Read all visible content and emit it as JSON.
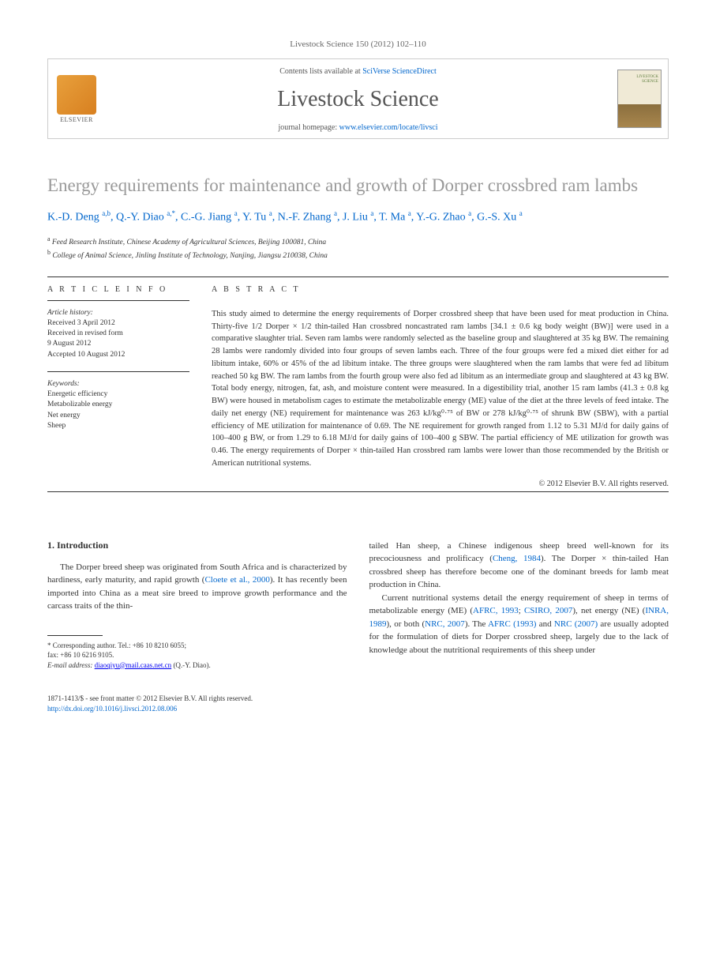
{
  "journal_ref": "Livestock Science 150 (2012) 102–110",
  "header": {
    "elsevier": "ELSEVIER",
    "contents_prefix": "Contents lists available at ",
    "contents_link": "SciVerse ScienceDirect",
    "journal_name": "Livestock Science",
    "homepage_prefix": "journal homepage: ",
    "homepage_link": "www.elsevier.com/locate/livsci"
  },
  "title": "Energy requirements for maintenance and growth of Dorper crossbred ram lambs",
  "authors_html": "K.-D. Deng <sup>a,b</sup>, Q.-Y. Diao <sup>a,*</sup>, C.-G. Jiang <sup>a</sup>, Y. Tu <sup>a</sup>, N.-F. Zhang <sup>a</sup>, J. Liu <sup>a</sup>, T. Ma <sup>a</sup>, Y.-G. Zhao <sup>a</sup>, G.-S. Xu <sup>a</sup>",
  "affiliations": {
    "a": "Feed Research Institute, Chinese Academy of Agricultural Sciences, Beijing 100081, China",
    "b": "College of Animal Science, Jinling Institute of Technology, Nanjing, Jiangsu 210038, China"
  },
  "info": {
    "heading": "A R T I C L E   I N F O",
    "history_label": "Article history:",
    "received": "Received 3 April 2012",
    "revised1": "Received in revised form",
    "revised2": "9 August 2012",
    "accepted": "Accepted 10 August 2012",
    "keywords_label": "Keywords:",
    "kw1": "Energetic efficiency",
    "kw2": "Metabolizable energy",
    "kw3": "Net energy",
    "kw4": "Sheep"
  },
  "abstract": {
    "heading": "A B S T R A C T",
    "text": "This study aimed to determine the energy requirements of Dorper crossbred sheep that have been used for meat production in China. Thirty-five 1/2 Dorper × 1/2 thin-tailed Han crossbred noncastrated ram lambs [34.1 ± 0.6 kg body weight (BW)] were used in a comparative slaughter trial. Seven ram lambs were randomly selected as the baseline group and slaughtered at 35 kg BW. The remaining 28 lambs were randomly divided into four groups of seven lambs each. Three of the four groups were fed a mixed diet either for ad libitum intake, 60% or 45% of the ad libitum intake. The three groups were slaughtered when the ram lambs that were fed ad libitum reached 50 kg BW. The ram lambs from the fourth group were also fed ad libitum as an intermediate group and slaughtered at 43 kg BW. Total body energy, nitrogen, fat, ash, and moisture content were measured. In a digestibility trial, another 15 ram lambs (41.3 ± 0.8 kg BW) were housed in metabolism cages to estimate the metabolizable energy (ME) value of the diet at the three levels of feed intake. The daily net energy (NE) requirement for maintenance was 263 kJ/kg⁰·⁷⁵ of BW or 278 kJ/kg⁰·⁷⁵ of shrunk BW (SBW), with a partial efficiency of ME utilization for maintenance of 0.69. The NE requirement for growth ranged from 1.12 to 5.31 MJ/d for daily gains of 100–400 g BW, or from 1.29 to 6.18 MJ/d for daily gains of 100–400 g SBW. The partial efficiency of ME utilization for growth was 0.46. The energy requirements of Dorper × thin-tailed Han crossbred ram lambs were lower than those recommended by the British or American nutritional systems.",
    "copyright": "© 2012 Elsevier B.V. All rights reserved."
  },
  "intro": {
    "heading": "1.  Introduction",
    "p1_pre": "The Dorper breed sheep was originated from South Africa and is characterized by hardiness, early maturity, and rapid growth (",
    "p1_link": "Cloete et al., 2000",
    "p1_post": "). It has recently been imported into China as a meat sire breed to improve growth performance and the carcass traits of the thin-",
    "p2_pre": "tailed Han sheep, a Chinese indigenous sheep breed well-known for its precociousness and prolificacy (",
    "p2_link": "Cheng, 1984",
    "p2_post": "). The Dorper × thin-tailed Han crossbred sheep has therefore become one of the dominant breeds for lamb meat production in China.",
    "p3_a": "Current nutritional systems detail the energy requirement of sheep in terms of metabolizable energy (ME) (",
    "p3_l1": "AFRC, 1993",
    "p3_b": "; ",
    "p3_l2": "CSIRO, 2007",
    "p3_c": "), net energy (NE) (",
    "p3_l3": "INRA, 1989",
    "p3_d": "), or both (",
    "p3_l4": "NRC, 2007",
    "p3_e": "). The ",
    "p3_l5": "AFRC (1993)",
    "p3_f": " and ",
    "p3_l6": "NRC (2007)",
    "p3_g": " are usually adopted for the formulation of diets for Dorper crossbred sheep, largely due to the lack of knowledge about the nutritional requirements of this sheep under"
  },
  "corr": {
    "label": "* Corresponding author. Tel.: ",
    "tel": "+86 10 8210 6055;",
    "fax_label": "fax: ",
    "fax": "+86 10 6216 9105.",
    "email_label": "E-mail address: ",
    "email": "diaoqiyu@mail.caas.net.cn",
    "email_suffix": " (Q.-Y. Diao)."
  },
  "footer": {
    "issn": "1871-1413/$ - see front matter © 2012 Elsevier B.V. All rights reserved.",
    "doi": "http://dx.doi.org/10.1016/j.livsci.2012.08.006"
  },
  "colors": {
    "link": "#0066cc",
    "title_gray": "#999999",
    "text": "#333333",
    "border": "#cccccc"
  }
}
